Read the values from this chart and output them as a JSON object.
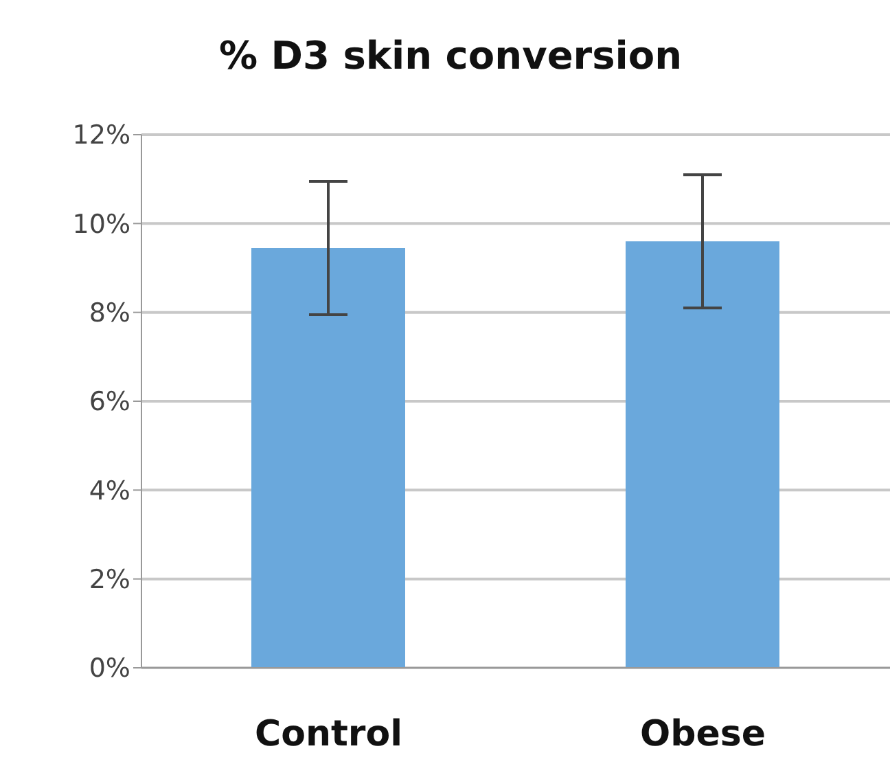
{
  "chart_data": {
    "type": "bar",
    "title": "% D3 skin conversion",
    "categories": [
      "Control",
      "Obese"
    ],
    "series": [
      {
        "color": "#6aa8dc",
        "values": [
          9.45,
          9.6
        ],
        "errors": [
          1.5,
          1.5
        ]
      }
    ],
    "ylim": [
      0,
      12
    ],
    "yticks": [
      {
        "value": 0,
        "label": "0%"
      },
      {
        "value": 2,
        "label": "2%"
      },
      {
        "value": 4,
        "label": "4%"
      },
      {
        "value": 6,
        "label": "6%"
      },
      {
        "value": 8,
        "label": "8%"
      },
      {
        "value": 10,
        "label": "10%"
      },
      {
        "value": 12,
        "label": "12%"
      }
    ],
    "grid": "y",
    "legend": false
  }
}
